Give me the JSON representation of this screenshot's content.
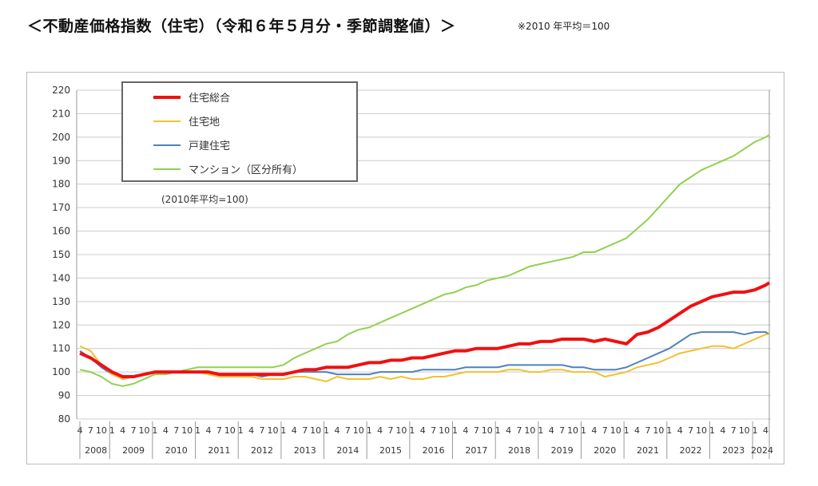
{
  "title": "＜不動産価格指数（住宅）（令和６年５月分・季節調整値）＞",
  "note": "※2010 年平均＝100",
  "chart_data": {
    "type": "line",
    "inner_note": "(2010年平均=100)",
    "ylim": [
      80,
      220
    ],
    "yticks": [
      80,
      90,
      100,
      110,
      120,
      130,
      140,
      150,
      160,
      170,
      180,
      190,
      200,
      210,
      220
    ],
    "xrange": [
      "2008-04",
      "2024-05"
    ],
    "month_tick_labels": [
      "1",
      "4",
      "7",
      "10"
    ],
    "year_labels": [
      "2008",
      "2009",
      "2010",
      "2011",
      "2012",
      "2013",
      "2014",
      "2015",
      "2016",
      "2017",
      "2018",
      "2019",
      "2020",
      "2021",
      "2022",
      "2023",
      "2024"
    ],
    "grid": true,
    "legend_placement": "top-left",
    "x": [
      "2008-04",
      "2008-07",
      "2008-10",
      "2009-01",
      "2009-04",
      "2009-07",
      "2009-10",
      "2010-01",
      "2010-04",
      "2010-07",
      "2010-10",
      "2011-01",
      "2011-04",
      "2011-07",
      "2011-10",
      "2012-01",
      "2012-04",
      "2012-07",
      "2012-10",
      "2013-01",
      "2013-04",
      "2013-07",
      "2013-10",
      "2014-01",
      "2014-04",
      "2014-07",
      "2014-10",
      "2015-01",
      "2015-04",
      "2015-07",
      "2015-10",
      "2016-01",
      "2016-04",
      "2016-07",
      "2016-10",
      "2017-01",
      "2017-04",
      "2017-07",
      "2017-10",
      "2018-01",
      "2018-04",
      "2018-07",
      "2018-10",
      "2019-01",
      "2019-04",
      "2019-07",
      "2019-10",
      "2020-01",
      "2020-04",
      "2020-07",
      "2020-10",
      "2021-01",
      "2021-04",
      "2021-07",
      "2021-10",
      "2022-01",
      "2022-04",
      "2022-07",
      "2022-10",
      "2023-01",
      "2023-04",
      "2023-07",
      "2023-10",
      "2024-01",
      "2024-04",
      "2024-05"
    ],
    "series": [
      {
        "name": "住宅総合",
        "color": "#ee1111",
        "values": [
          108,
          106,
          103,
          100,
          98,
          98,
          99,
          100,
          100,
          100,
          100,
          100,
          100,
          99,
          99,
          99,
          99,
          99,
          99,
          99,
          100,
          101,
          101,
          102,
          102,
          102,
          103,
          104,
          104,
          105,
          105,
          106,
          106,
          107,
          108,
          109,
          109,
          110,
          110,
          110,
          111,
          112,
          112,
          113,
          113,
          114,
          114,
          114,
          113,
          114,
          113,
          112,
          116,
          117,
          119,
          122,
          125,
          128,
          130,
          132,
          133,
          134,
          134,
          135,
          137,
          138
        ]
      },
      {
        "name": "住宅地",
        "color": "#f2c12e",
        "values": [
          111,
          109,
          103,
          99,
          97,
          98,
          99,
          100,
          100,
          100,
          100,
          100,
          99,
          98,
          98,
          98,
          98,
          97,
          97,
          97,
          98,
          98,
          97,
          96,
          98,
          97,
          97,
          97,
          98,
          97,
          98,
          97,
          97,
          98,
          98,
          99,
          100,
          100,
          100,
          100,
          101,
          101,
          100,
          100,
          101,
          101,
          100,
          100,
          100,
          98,
          99,
          100,
          102,
          103,
          104,
          106,
          108,
          109,
          110,
          111,
          111,
          110,
          112,
          114,
          116,
          116
        ]
      },
      {
        "name": "戸建住宅",
        "color": "#4f81bd",
        "values": [
          109,
          106,
          102,
          99,
          97,
          98,
          99,
          100,
          100,
          100,
          100,
          100,
          100,
          99,
          99,
          99,
          99,
          98,
          99,
          99,
          100,
          100,
          100,
          100,
          99,
          99,
          99,
          99,
          100,
          100,
          100,
          100,
          101,
          101,
          101,
          101,
          102,
          102,
          102,
          102,
          103,
          103,
          103,
          103,
          103,
          103,
          102,
          102,
          101,
          101,
          101,
          102,
          104,
          106,
          108,
          110,
          113,
          116,
          117,
          117,
          117,
          117,
          116,
          117,
          117,
          116
        ]
      },
      {
        "name": "マンション（区分所有）",
        "color": "#92d050",
        "values": [
          101,
          100,
          98,
          95,
          94,
          95,
          97,
          99,
          99,
          100,
          101,
          102,
          102,
          102,
          102,
          102,
          102,
          102,
          102,
          103,
          106,
          108,
          110,
          112,
          113,
          116,
          118,
          119,
          121,
          123,
          125,
          127,
          129,
          131,
          133,
          134,
          136,
          137,
          139,
          140,
          141,
          143,
          145,
          146,
          147,
          148,
          149,
          151,
          151,
          153,
          155,
          157,
          161,
          165,
          170,
          175,
          180,
          183,
          186,
          188,
          190,
          192,
          195,
          198,
          200,
          201
        ]
      }
    ]
  }
}
